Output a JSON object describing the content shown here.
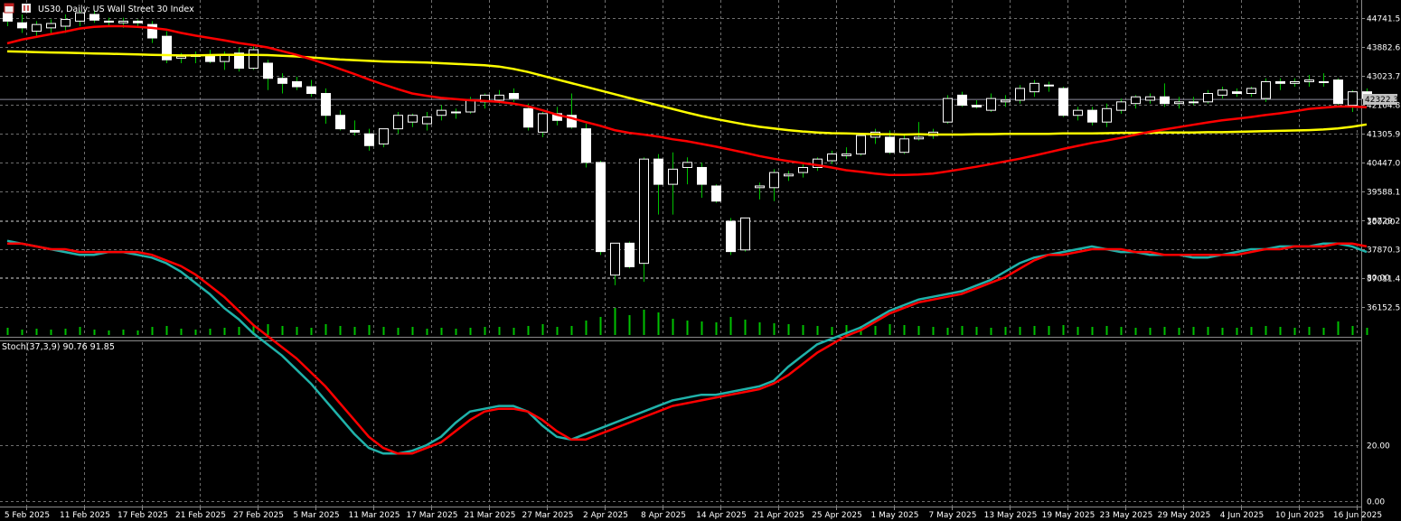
{
  "header": {
    "icons": [
      "window-icon",
      "chart-icon"
    ],
    "symbol_text": "US30, Daily:  US Wall Street 30 Index"
  },
  "price_panel": {
    "current_price": "42322.3",
    "price_labels": [
      "44741.5",
      "43882.6",
      "43023.7",
      "42164.8",
      "41305.9",
      "40447.0",
      "39588.1",
      "38729.2",
      "37870.3",
      "37011.4",
      "36152.5"
    ]
  },
  "stoch_panel": {
    "title": "Stoch(37,3,9) 90.76 91.85",
    "level_labels": [
      "100.00",
      "80.00",
      "20.00",
      "0.00"
    ]
  },
  "date_labels": [
    "5 Feb 2025",
    "11 Feb 2025",
    "17 Feb 2025",
    "21 Feb 2025",
    "27 Feb 2025",
    "5 Mar 2025",
    "11 Mar 2025",
    "17 Mar 2025",
    "21 Mar 2025",
    "27 Mar 2025",
    "2 Apr 2025",
    "8 Apr 2025",
    "14 Apr 2025",
    "21 Apr 2025",
    "25 Apr 2025",
    "1 May 2025",
    "7 May 2025",
    "13 May 2025",
    "19 May 2025",
    "23 May 2025",
    "29 May 2025",
    "4 Jun 2025",
    "10 Jun 2025",
    "16 Jun 2025"
  ],
  "colors": {
    "background": "#000000",
    "grid": "#6e6e6e",
    "bull_candle": "#ffffff",
    "wick": "#00c000",
    "volume": "#00c000",
    "ma_fast": "#ff0000",
    "ma_slow": "#ffff00",
    "stoch_main": "#20b2aa",
    "stoch_signal": "#ff0000"
  },
  "chart_data": {
    "type": "candlestick",
    "symbol": "US30",
    "timeframe": "Daily",
    "y_range": [
      35800,
      45300
    ],
    "candles": [
      {
        "o": 44900,
        "h": 45100,
        "l": 44500,
        "c": 44650
      },
      {
        "o": 44600,
        "h": 44850,
        "l": 44300,
        "c": 44450
      },
      {
        "o": 44350,
        "h": 44650,
        "l": 44200,
        "c": 44550
      },
      {
        "o": 44450,
        "h": 44700,
        "l": 44300,
        "c": 44580
      },
      {
        "o": 44500,
        "h": 44850,
        "l": 44300,
        "c": 44700
      },
      {
        "o": 44650,
        "h": 44950,
        "l": 44500,
        "c": 44900
      },
      {
        "o": 44850,
        "h": 44950,
        "l": 44600,
        "c": 44680
      },
      {
        "o": 44650,
        "h": 44750,
        "l": 44500,
        "c": 44620
      },
      {
        "o": 44600,
        "h": 44750,
        "l": 44450,
        "c": 44650
      },
      {
        "o": 44650,
        "h": 44700,
        "l": 44500,
        "c": 44600
      },
      {
        "o": 44550,
        "h": 44650,
        "l": 44000,
        "c": 44150
      },
      {
        "o": 44200,
        "h": 44350,
        "l": 43400,
        "c": 43500
      },
      {
        "o": 43550,
        "h": 43700,
        "l": 43400,
        "c": 43600
      },
      {
        "o": 43600,
        "h": 43750,
        "l": 43400,
        "c": 43650
      },
      {
        "o": 43650,
        "h": 43800,
        "l": 43400,
        "c": 43450
      },
      {
        "o": 43450,
        "h": 43750,
        "l": 43200,
        "c": 43650
      },
      {
        "o": 43700,
        "h": 43850,
        "l": 43150,
        "c": 43250
      },
      {
        "o": 43250,
        "h": 43900,
        "l": 43200,
        "c": 43800
      },
      {
        "o": 43400,
        "h": 43500,
        "l": 42600,
        "c": 42950
      },
      {
        "o": 42950,
        "h": 43100,
        "l": 42500,
        "c": 42800
      },
      {
        "o": 42850,
        "h": 43000,
        "l": 42600,
        "c": 42700
      },
      {
        "o": 42700,
        "h": 42900,
        "l": 42400,
        "c": 42500
      },
      {
        "o": 42500,
        "h": 42650,
        "l": 41600,
        "c": 41850
      },
      {
        "o": 41850,
        "h": 42000,
        "l": 41400,
        "c": 41450
      },
      {
        "o": 41400,
        "h": 41700,
        "l": 41250,
        "c": 41350
      },
      {
        "o": 41300,
        "h": 41450,
        "l": 40800,
        "c": 40950
      },
      {
        "o": 41000,
        "h": 41450,
        "l": 40900,
        "c": 41450
      },
      {
        "o": 41450,
        "h": 41950,
        "l": 41300,
        "c": 41850
      },
      {
        "o": 41650,
        "h": 41900,
        "l": 41500,
        "c": 41850
      },
      {
        "o": 41600,
        "h": 41950,
        "l": 41400,
        "c": 41800
      },
      {
        "o": 41850,
        "h": 42150,
        "l": 41700,
        "c": 42000
      },
      {
        "o": 41950,
        "h": 42050,
        "l": 41750,
        "c": 41950
      },
      {
        "o": 41950,
        "h": 42400,
        "l": 41900,
        "c": 42300
      },
      {
        "o": 42250,
        "h": 42500,
        "l": 42050,
        "c": 42450
      },
      {
        "o": 42300,
        "h": 42600,
        "l": 42200,
        "c": 42450
      },
      {
        "o": 42500,
        "h": 42650,
        "l": 42250,
        "c": 42350
      },
      {
        "o": 42050,
        "h": 42200,
        "l": 41400,
        "c": 41500
      },
      {
        "o": 41350,
        "h": 41950,
        "l": 41200,
        "c": 41900
      },
      {
        "o": 41900,
        "h": 42100,
        "l": 41550,
        "c": 41700
      },
      {
        "o": 41850,
        "h": 42500,
        "l": 41450,
        "c": 41500
      },
      {
        "o": 41450,
        "h": 41600,
        "l": 40300,
        "c": 40450
      },
      {
        "o": 40450,
        "h": 40500,
        "l": 37700,
        "c": 37800
      },
      {
        "o": 37100,
        "h": 38050,
        "l": 36800,
        "c": 38050
      },
      {
        "o": 38050,
        "h": 38100,
        "l": 37300,
        "c": 37350
      },
      {
        "o": 37450,
        "h": 40600,
        "l": 36900,
        "c": 40550
      },
      {
        "o": 40550,
        "h": 40700,
        "l": 38900,
        "c": 39800
      },
      {
        "o": 39800,
        "h": 40750,
        "l": 38900,
        "c": 40250
      },
      {
        "o": 40300,
        "h": 40600,
        "l": 39800,
        "c": 40450
      },
      {
        "o": 40300,
        "h": 40450,
        "l": 39400,
        "c": 39800
      },
      {
        "o": 39750,
        "h": 39800,
        "l": 39250,
        "c": 39300
      },
      {
        "o": 38700,
        "h": 38800,
        "l": 37700,
        "c": 37800
      },
      {
        "o": 37850,
        "h": 38800,
        "l": 37800,
        "c": 38800
      },
      {
        "o": 39700,
        "h": 39850,
        "l": 39350,
        "c": 39750
      },
      {
        "o": 39700,
        "h": 40250,
        "l": 39300,
        "c": 40150
      },
      {
        "o": 40050,
        "h": 40200,
        "l": 39900,
        "c": 40100
      },
      {
        "o": 40150,
        "h": 40400,
        "l": 40000,
        "c": 40300
      },
      {
        "o": 40300,
        "h": 40600,
        "l": 40200,
        "c": 40550
      },
      {
        "o": 40500,
        "h": 40800,
        "l": 40400,
        "c": 40700
      },
      {
        "o": 40650,
        "h": 40900,
        "l": 40550,
        "c": 40700
      },
      {
        "o": 40700,
        "h": 41300,
        "l": 40650,
        "c": 41250
      },
      {
        "o": 41200,
        "h": 41450,
        "l": 41000,
        "c": 41350
      },
      {
        "o": 41200,
        "h": 41400,
        "l": 40700,
        "c": 40750
      },
      {
        "o": 40750,
        "h": 41300,
        "l": 40700,
        "c": 41150
      },
      {
        "o": 41150,
        "h": 41650,
        "l": 41100,
        "c": 41200
      },
      {
        "o": 41250,
        "h": 41450,
        "l": 41150,
        "c": 41350
      },
      {
        "o": 41650,
        "h": 42450,
        "l": 41600,
        "c": 42350
      },
      {
        "o": 42450,
        "h": 42550,
        "l": 42100,
        "c": 42150
      },
      {
        "o": 42150,
        "h": 42300,
        "l": 42050,
        "c": 42100
      },
      {
        "o": 42000,
        "h": 42500,
        "l": 41950,
        "c": 42350
      },
      {
        "o": 42250,
        "h": 42450,
        "l": 42100,
        "c": 42300
      },
      {
        "o": 42300,
        "h": 42750,
        "l": 42200,
        "c": 42650
      },
      {
        "o": 42550,
        "h": 42900,
        "l": 42400,
        "c": 42800
      },
      {
        "o": 42750,
        "h": 42850,
        "l": 42550,
        "c": 42750
      },
      {
        "o": 42650,
        "h": 42700,
        "l": 41800,
        "c": 41850
      },
      {
        "o": 41850,
        "h": 42100,
        "l": 41700,
        "c": 42000
      },
      {
        "o": 42000,
        "h": 42100,
        "l": 41550,
        "c": 41650
      },
      {
        "o": 41650,
        "h": 42200,
        "l": 41500,
        "c": 42050
      },
      {
        "o": 42000,
        "h": 42350,
        "l": 41900,
        "c": 42250
      },
      {
        "o": 42200,
        "h": 42450,
        "l": 42050,
        "c": 42400
      },
      {
        "o": 42300,
        "h": 42500,
        "l": 42200,
        "c": 42400
      },
      {
        "o": 42400,
        "h": 42800,
        "l": 42100,
        "c": 42200
      },
      {
        "o": 42200,
        "h": 42400,
        "l": 42050,
        "c": 42250
      },
      {
        "o": 42250,
        "h": 42400,
        "l": 42150,
        "c": 42250
      },
      {
        "o": 42250,
        "h": 42600,
        "l": 42200,
        "c": 42500
      },
      {
        "o": 42450,
        "h": 42700,
        "l": 42350,
        "c": 42600
      },
      {
        "o": 42550,
        "h": 42650,
        "l": 42400,
        "c": 42500
      },
      {
        "o": 42500,
        "h": 42700,
        "l": 42400,
        "c": 42650
      },
      {
        "o": 42350,
        "h": 42950,
        "l": 42250,
        "c": 42850
      },
      {
        "o": 42850,
        "h": 42950,
        "l": 42600,
        "c": 42800
      },
      {
        "o": 42800,
        "h": 42950,
        "l": 42700,
        "c": 42850
      },
      {
        "o": 42850,
        "h": 43050,
        "l": 42700,
        "c": 42900
      },
      {
        "o": 42850,
        "h": 43100,
        "l": 42700,
        "c": 42850
      },
      {
        "o": 42900,
        "h": 42950,
        "l": 42150,
        "c": 42200
      },
      {
        "o": 42150,
        "h": 42600,
        "l": 41950,
        "c": 42550
      },
      {
        "o": 42550,
        "h": 42650,
        "l": 42300,
        "c": 42350
      }
    ],
    "volume": [
      8,
      6,
      7,
      6,
      7,
      9,
      6,
      5,
      6,
      5,
      9,
      10,
      7,
      6,
      7,
      8,
      9,
      11,
      12,
      10,
      9,
      8,
      12,
      10,
      9,
      11,
      9,
      8,
      9,
      7,
      8,
      7,
      8,
      9,
      9,
      8,
      10,
      12,
      9,
      10,
      16,
      20,
      30,
      22,
      28,
      25,
      18,
      16,
      15,
      14,
      20,
      17,
      14,
      13,
      12,
      11,
      10,
      9,
      11,
      10,
      10,
      12,
      11,
      10,
      9,
      8,
      10,
      9,
      8,
      9,
      9,
      10,
      10,
      11,
      9,
      9,
      10,
      9,
      8,
      8,
      9,
      8,
      9,
      9,
      8,
      8,
      9,
      10,
      9,
      8,
      9,
      8,
      15,
      10,
      8
    ],
    "ma_fast": [
      43990,
      44100,
      44180,
      44260,
      44340,
      44430,
      44480,
      44500,
      44500,
      44480,
      44450,
      44400,
      44300,
      44220,
      44150,
      44080,
      44000,
      43940,
      43870,
      43760,
      43650,
      43520,
      43380,
      43230,
      43080,
      42920,
      42770,
      42630,
      42500,
      42430,
      42370,
      42330,
      42300,
      42280,
      42250,
      42200,
      42120,
      42000,
      41870,
      41770,
      41650,
      41540,
      41410,
      41330,
      41280,
      41220,
      41140,
      41080,
      41000,
      40920,
      40830,
      40740,
      40640,
      40560,
      40490,
      40430,
      40370,
      40300,
      40220,
      40170,
      40120,
      40080,
      40080,
      40090,
      40120,
      40180,
      40250,
      40320,
      40400,
      40480,
      40560,
      40650,
      40750,
      40850,
      40940,
      41030,
      41100,
      41180,
      41270,
      41360,
      41430,
      41500,
      41570,
      41640,
      41700,
      41750,
      41800,
      41860,
      41910,
      41970,
      42040,
      42080,
      42110,
      42110,
      42090
    ],
    "ma_slow": [
      43750,
      43740,
      43730,
      43720,
      43710,
      43700,
      43690,
      43680,
      43670,
      43660,
      43650,
      43640,
      43630,
      43630,
      43640,
      43650,
      43650,
      43650,
      43640,
      43620,
      43600,
      43570,
      43540,
      43510,
      43490,
      43470,
      43450,
      43440,
      43430,
      43420,
      43400,
      43380,
      43360,
      43340,
      43300,
      43230,
      43140,
      43030,
      42920,
      42810,
      42700,
      42590,
      42480,
      42370,
      42260,
      42150,
      42040,
      41930,
      41830,
      41740,
      41660,
      41580,
      41510,
      41460,
      41410,
      41370,
      41340,
      41320,
      41310,
      41300,
      41290,
      41290,
      41280,
      41290,
      41280,
      41280,
      41280,
      41290,
      41290,
      41300,
      41300,
      41300,
      41300,
      41310,
      41310,
      41310,
      41320,
      41330,
      41330,
      41330,
      41340,
      41340,
      41340,
      41350,
      41350,
      41360,
      41370,
      41380,
      41390,
      41400,
      41410,
      41430,
      41460,
      41510,
      41580
    ],
    "stoch_main": [
      93,
      92,
      91,
      90,
      89,
      88,
      88,
      89,
      89,
      88,
      87,
      85,
      82,
      78,
      74,
      69,
      65,
      60,
      56,
      52,
      47,
      42,
      36,
      30,
      24,
      19,
      17,
      17,
      18,
      20,
      23,
      28,
      32,
      33,
      34,
      34,
      32,
      27,
      23,
      22,
      24,
      26,
      28,
      30,
      32,
      34,
      36,
      37,
      38,
      38,
      39,
      40,
      41,
      43,
      48,
      52,
      56,
      58,
      60,
      62,
      65,
      68,
      70,
      72,
      73,
      74,
      75,
      77,
      79,
      82,
      85,
      87,
      88,
      89,
      90,
      91,
      90,
      89,
      89,
      88,
      88,
      88,
      87,
      87,
      88,
      89,
      90,
      90,
      91,
      91,
      91,
      92,
      92,
      91,
      89
    ],
    "stoch_signal": [
      92,
      92,
      91,
      90,
      90,
      89,
      89,
      89,
      89,
      89,
      88,
      86,
      84,
      81,
      77,
      73,
      68,
      63,
      59,
      55,
      51,
      46,
      41,
      35,
      29,
      23,
      19,
      17,
      17,
      19,
      21,
      25,
      29,
      32,
      33,
      33,
      32,
      29,
      25,
      22,
      22,
      24,
      26,
      28,
      30,
      32,
      34,
      35,
      36,
      37,
      38,
      39,
      40,
      42,
      45,
      49,
      53,
      56,
      59,
      61,
      64,
      67,
      69,
      71,
      72,
      73,
      74,
      76,
      78,
      80,
      83,
      86,
      88,
      88,
      89,
      90,
      90,
      90,
      89,
      89,
      88,
      88,
      88,
      88,
      88,
      88,
      89,
      90,
      90,
      91,
      91,
      91,
      92,
      92,
      91
    ],
    "stoch_levels": [
      80,
      20
    ]
  }
}
